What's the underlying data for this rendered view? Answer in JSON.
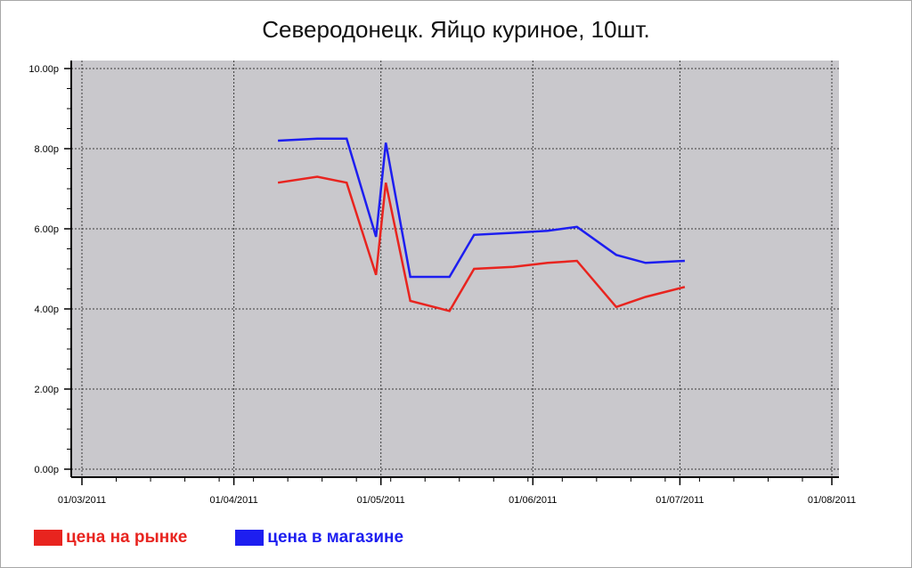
{
  "chart_data": {
    "type": "line",
    "title": "Северодонецк. Яйцо куриное, 10шт.",
    "xlabel": "",
    "ylabel": "",
    "x_ticks": [
      "01/03/2011",
      "01/04/2011",
      "01/05/2011",
      "01/06/2011",
      "01/07/2011",
      "01/08/2011"
    ],
    "xlim": [
      "2011-03-01",
      "2011-08-01"
    ],
    "y_ticks": [
      "0.00р",
      "2.00р",
      "4.00р",
      "6.00р",
      "8.00р",
      "10.00р"
    ],
    "ylim": [
      0,
      10
    ],
    "grid": true,
    "background_color": "#c9c8cc",
    "legend_position": "bottom-left",
    "series": [
      {
        "name": "цена на рынке",
        "color": "#e8241f",
        "points": [
          {
            "x": "2011-04-10",
            "y": 7.15
          },
          {
            "x": "2011-04-18",
            "y": 7.3
          },
          {
            "x": "2011-04-24",
            "y": 7.15
          },
          {
            "x": "2011-04-30",
            "y": 4.85
          },
          {
            "x": "2011-05-02",
            "y": 7.15
          },
          {
            "x": "2011-05-07",
            "y": 4.2
          },
          {
            "x": "2011-05-15",
            "y": 3.95
          },
          {
            "x": "2011-05-20",
            "y": 5.0
          },
          {
            "x": "2011-05-28",
            "y": 5.05
          },
          {
            "x": "2011-06-04",
            "y": 5.15
          },
          {
            "x": "2011-06-10",
            "y": 5.2
          },
          {
            "x": "2011-06-18",
            "y": 4.05
          },
          {
            "x": "2011-06-24",
            "y": 4.3
          },
          {
            "x": "2011-07-02",
            "y": 4.55
          }
        ]
      },
      {
        "name": "цена в магазине",
        "color": "#1d1ef0",
        "points": [
          {
            "x": "2011-04-10",
            "y": 8.2
          },
          {
            "x": "2011-04-18",
            "y": 8.25
          },
          {
            "x": "2011-04-24",
            "y": 8.25
          },
          {
            "x": "2011-04-30",
            "y": 5.8
          },
          {
            "x": "2011-05-02",
            "y": 8.15
          },
          {
            "x": "2011-05-07",
            "y": 4.8
          },
          {
            "x": "2011-05-15",
            "y": 4.8
          },
          {
            "x": "2011-05-20",
            "y": 5.85
          },
          {
            "x": "2011-05-28",
            "y": 5.9
          },
          {
            "x": "2011-06-04",
            "y": 5.95
          },
          {
            "x": "2011-06-10",
            "y": 6.05
          },
          {
            "x": "2011-06-18",
            "y": 5.35
          },
          {
            "x": "2011-06-24",
            "y": 5.15
          },
          {
            "x": "2011-07-02",
            "y": 5.2
          }
        ]
      }
    ]
  }
}
